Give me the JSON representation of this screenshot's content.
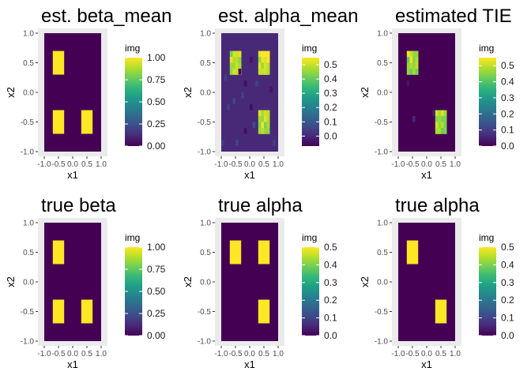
{
  "colors": {
    "panel_bg": "#ebebeb",
    "grid": "#ffffff",
    "viridis": [
      "#440154",
      "#482878",
      "#3e4a89",
      "#31688e",
      "#26828e",
      "#1f9e89",
      "#35b779",
      "#6ece58",
      "#b5de2b",
      "#fde725"
    ]
  },
  "chart_data": [
    {
      "type": "heatmap",
      "title": "est. beta_mean",
      "xlabel": "x1",
      "ylabel": "x2",
      "xlim": [
        -1.0,
        1.0
      ],
      "ylim": [
        -1.0,
        1.0
      ],
      "xticks": [
        "-1.0",
        "-0.5",
        "0.0",
        "0.5",
        "1.0"
      ],
      "yticks": [
        "1.0",
        "0.5",
        "0.0",
        "-0.5",
        "-1.0"
      ],
      "legend_title": "img",
      "scale": [
        0.0,
        1.0
      ],
      "legend_ticks": [
        "1.00",
        "0.75",
        "0.50",
        "0.25",
        "0.00"
      ],
      "background": 0.0,
      "regions": [
        {
          "x": [
            -0.7,
            -0.3
          ],
          "y": [
            0.3,
            0.7
          ],
          "value": 1.0
        },
        {
          "x": [
            -0.7,
            -0.3
          ],
          "y": [
            -0.7,
            -0.3
          ],
          "value": 1.0
        },
        {
          "x": [
            0.3,
            0.7
          ],
          "y": [
            -0.7,
            -0.3
          ],
          "value": 1.0
        }
      ],
      "speckles": []
    },
    {
      "type": "heatmap",
      "title": "est. alpha_mean",
      "xlabel": "x1",
      "ylabel": "x2",
      "xlim": [
        -1.0,
        1.0
      ],
      "ylim": [
        -1.0,
        1.0
      ],
      "xticks": [
        "-1.0",
        "-0.5",
        "0.0",
        "0.5",
        "1.0"
      ],
      "yticks": [
        "1.0",
        "0.5",
        "0.0",
        "-0.5",
        "-1.0"
      ],
      "legend_title": "img",
      "scale": [
        -0.07,
        0.55
      ],
      "legend_ticks": [
        "0.5",
        "0.4",
        "0.3",
        "0.2",
        "0.1",
        "0.0"
      ],
      "background": 0.0,
      "regions": [
        {
          "x": [
            -0.7,
            -0.3
          ],
          "y": [
            0.3,
            0.7
          ],
          "value": 0.48,
          "noise": 0.06
        },
        {
          "x": [
            0.3,
            0.7
          ],
          "y": [
            0.3,
            0.7
          ],
          "value": 0.5,
          "noise": 0.06
        },
        {
          "x": [
            0.3,
            0.7
          ],
          "y": [
            -0.7,
            -0.3
          ],
          "value": 0.48,
          "noise": 0.06
        }
      ],
      "speckles": [
        {
          "x": -0.35,
          "y": 0.35,
          "value": -0.06
        },
        {
          "x": -0.15,
          "y": 0.15,
          "value": -0.05
        },
        {
          "x": -0.85,
          "y": 0.25,
          "value": 0.05
        },
        {
          "x": -0.55,
          "y": -0.15,
          "value": 0.06
        },
        {
          "x": 0.05,
          "y": -0.25,
          "value": -0.05
        },
        {
          "x": -0.75,
          "y": -0.25,
          "value": 0.05
        },
        {
          "x": 0.15,
          "y": -0.55,
          "value": 0.07
        },
        {
          "x": -0.15,
          "y": -0.65,
          "value": -0.05
        },
        {
          "x": 0.25,
          "y": 0.15,
          "value": 0.05
        },
        {
          "x": -0.45,
          "y": -0.85,
          "value": 0.06
        },
        {
          "x": 0.75,
          "y": 0.05,
          "value": -0.04
        },
        {
          "x": -0.95,
          "y": -0.85,
          "value": 0.04
        },
        {
          "x": 0.85,
          "y": -0.85,
          "value": 0.05
        },
        {
          "x": 0.05,
          "y": 0.55,
          "value": -0.04
        },
        {
          "x": -0.25,
          "y": -0.05,
          "value": 0.05
        }
      ]
    },
    {
      "type": "heatmap",
      "title": "estimated TIE",
      "xlabel": "x1",
      "ylabel": "x2",
      "xlim": [
        -1.0,
        1.0
      ],
      "ylim": [
        -1.0,
        1.0
      ],
      "xticks": [
        "-1.0",
        "-0.5",
        "0.0",
        "0.5",
        "1.0"
      ],
      "yticks": [
        "1.0",
        "0.5",
        "0.0",
        "-0.5",
        "-1.0"
      ],
      "legend_title": "img",
      "scale": [
        0.0,
        0.55
      ],
      "legend_ticks": [
        "0.5",
        "0.4",
        "0.3",
        "0.2",
        "0.1",
        "0.0"
      ],
      "background": 0.0,
      "regions": [
        {
          "x": [
            -0.7,
            -0.3
          ],
          "y": [
            0.3,
            0.7
          ],
          "value": 0.48,
          "noise": 0.07
        },
        {
          "x": [
            0.3,
            0.7
          ],
          "y": [
            -0.7,
            -0.3
          ],
          "value": 0.46,
          "noise": 0.07
        }
      ],
      "speckles": [
        {
          "x": -0.45,
          "y": -0.45,
          "value": 0.06
        },
        {
          "x": 0.25,
          "y": -0.35,
          "value": 0.05
        },
        {
          "x": -0.65,
          "y": 0.15,
          "value": 0.03
        }
      ]
    },
    {
      "type": "heatmap",
      "title": "true beta",
      "xlabel": "x1",
      "ylabel": "x2",
      "xlim": [
        -1.0,
        1.0
      ],
      "ylim": [
        -1.0,
        1.0
      ],
      "xticks": [
        "-1.0",
        "-0.5",
        "0.0",
        "0.5",
        "1.0"
      ],
      "yticks": [
        "1.0",
        "0.5",
        "0.0",
        "-0.5",
        "-1.0"
      ],
      "legend_title": "img",
      "scale": [
        0.0,
        1.0
      ],
      "legend_ticks": [
        "1.00",
        "0.75",
        "0.50",
        "0.25",
        "0.00"
      ],
      "background": 0.0,
      "regions": [
        {
          "x": [
            -0.7,
            -0.3
          ],
          "y": [
            0.3,
            0.7
          ],
          "value": 1.0
        },
        {
          "x": [
            -0.7,
            -0.3
          ],
          "y": [
            -0.7,
            -0.3
          ],
          "value": 1.0
        },
        {
          "x": [
            0.3,
            0.7
          ],
          "y": [
            -0.7,
            -0.3
          ],
          "value": 1.0
        }
      ],
      "speckles": []
    },
    {
      "type": "heatmap",
      "title": "true alpha",
      "xlabel": "x1",
      "ylabel": "x2",
      "xlim": [
        -1.0,
        1.0
      ],
      "ylim": [
        -1.0,
        1.0
      ],
      "xticks": [
        "-1.0",
        "-0.5",
        "0.0",
        "0.5",
        "1.0"
      ],
      "yticks": [
        "1.0",
        "0.5",
        "0.0",
        "-0.5",
        "-1.0"
      ],
      "legend_title": "img",
      "scale": [
        0.0,
        0.5
      ],
      "legend_ticks": [
        "0.5",
        "0.4",
        "0.3",
        "0.2",
        "0.1",
        "0.0"
      ],
      "background": 0.0,
      "regions": [
        {
          "x": [
            -0.7,
            -0.3
          ],
          "y": [
            0.3,
            0.7
          ],
          "value": 0.5
        },
        {
          "x": [
            0.3,
            0.7
          ],
          "y": [
            0.3,
            0.7
          ],
          "value": 0.5
        },
        {
          "x": [
            0.3,
            0.7
          ],
          "y": [
            -0.7,
            -0.3
          ],
          "value": 0.5
        }
      ],
      "speckles": []
    },
    {
      "type": "heatmap",
      "title": "true alpha",
      "xlabel": "x1",
      "ylabel": "x2",
      "xlim": [
        -1.0,
        1.0
      ],
      "ylim": [
        -1.0,
        1.0
      ],
      "xticks": [
        "-1.0",
        "-0.5",
        "0.0",
        "0.5",
        "1.0"
      ],
      "yticks": [
        "1.0",
        "0.5",
        "0.0",
        "-0.5",
        "-1.0"
      ],
      "legend_title": "img",
      "scale": [
        0.0,
        0.5
      ],
      "legend_ticks": [
        "0.5",
        "0.4",
        "0.3",
        "0.2",
        "0.1",
        "0.0"
      ],
      "background": 0.0,
      "regions": [
        {
          "x": [
            -0.7,
            -0.3
          ],
          "y": [
            0.3,
            0.7
          ],
          "value": 0.5
        },
        {
          "x": [
            0.3,
            0.7
          ],
          "y": [
            -0.7,
            -0.3
          ],
          "value": 0.5
        }
      ],
      "speckles": []
    }
  ]
}
